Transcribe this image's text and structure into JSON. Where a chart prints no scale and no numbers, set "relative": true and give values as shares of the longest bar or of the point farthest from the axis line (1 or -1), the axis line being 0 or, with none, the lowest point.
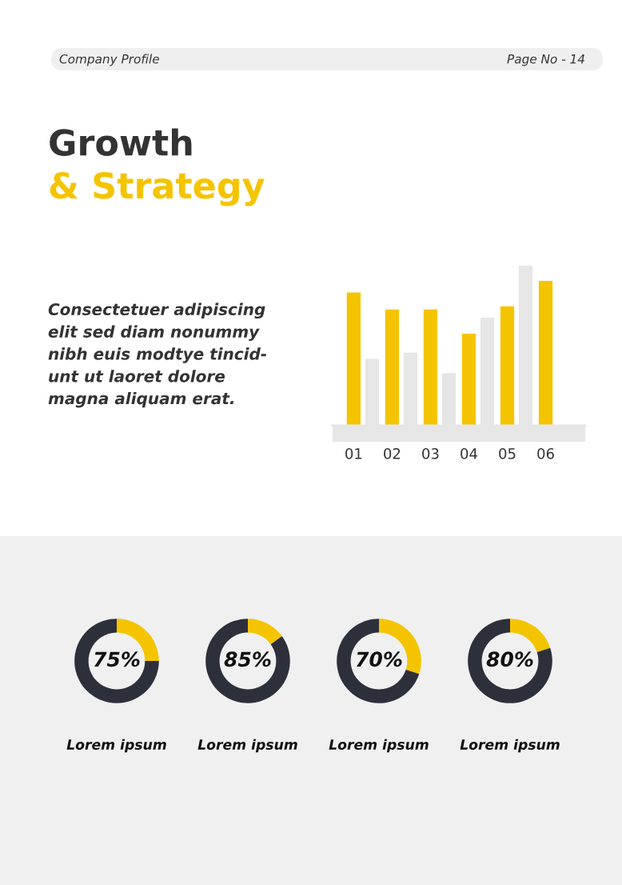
{
  "chart_data": [
    {
      "type": "other",
      "annotations": [
        "Company Profile",
        "Page No - 14",
        "Growth",
        "& Strategy",
        "Consectetuer adipiscing\nelit sed diam nonummy\nnibh euis modtye tincid-\nunt ut laoret dolore\nmagna aliquam erat."
      ]
    },
    {
      "type": "bar",
      "relative": true,
      "categories": [
        "01",
        "02",
        "03",
        "04",
        "05",
        "06"
      ],
      "series": [
        {
          "color": "#f5c400",
          "values": [
            0.833,
            0.726,
            0.726,
            0.575,
            0.746,
            0.905
          ]
        },
        {
          "color": "#e6e6e7",
          "values": [
            0.417,
            0.456,
            0.329,
            0.675,
            1,
            null
          ]
        }
      ]
    },
    {
      "type": "donut",
      "categories": [
        null,
        null
      ],
      "values": [
        25,
        75
      ],
      "colors": [
        "#f5c400",
        "#2d2f3b"
      ],
      "annotations": [
        "75%"
      ],
      "xlabel": "Lorem ipsum"
    },
    {
      "type": "donut",
      "categories": [
        null,
        null
      ],
      "values": [
        15,
        85
      ],
      "colors": [
        "#f5c400",
        "#2d2f3b"
      ],
      "annotations": [
        "85%"
      ],
      "xlabel": "Lorem ipsum"
    },
    {
      "type": "donut",
      "categories": [
        null,
        null
      ],
      "values": [
        30,
        70
      ],
      "colors": [
        "#f5c400",
        "#2d2f3b"
      ],
      "annotations": [
        "70%"
      ],
      "xlabel": "Lorem ipsum"
    },
    {
      "type": "donut",
      "categories": [
        null,
        null
      ],
      "values": [
        20,
        80
      ],
      "colors": [
        "#f5c400",
        "#2d2f3b"
      ],
      "annotations": [
        "80%"
      ],
      "xlabel": "Lorem ipsum"
    }
  ]
}
